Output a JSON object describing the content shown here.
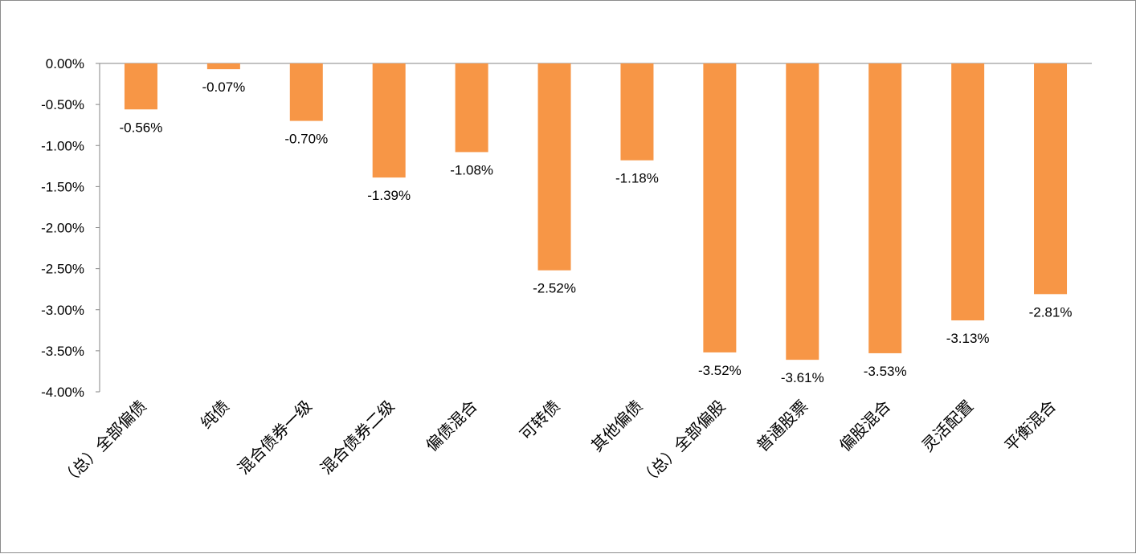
{
  "chart_data": {
    "type": "bar",
    "title": "",
    "xlabel": "",
    "ylabel": "",
    "categories": [
      "（总）全部偏债",
      "纯债",
      "混合债券一级",
      "混合债券二级",
      "偏债混合",
      "可转债",
      "其他偏债",
      "（总）全部偏股",
      "普通股票",
      "偏股混合",
      "灵活配置",
      "平衡混合"
    ],
    "values": [
      -0.56,
      -0.07,
      -0.7,
      -1.39,
      -1.08,
      -2.52,
      -1.18,
      -3.52,
      -3.61,
      -3.53,
      -3.13,
      -2.81
    ],
    "data_labels": [
      "-0.56%",
      "-0.07%",
      "-0.70%",
      "-1.39%",
      "-1.08%",
      "-2.52%",
      "-1.18%",
      "-3.52%",
      "-3.61%",
      "-3.53%",
      "-3.13%",
      "-2.81%"
    ],
    "ylim": [
      -4.0,
      0.0
    ],
    "y_ticks": [
      0.0,
      -0.5,
      -1.0,
      -1.5,
      -2.0,
      -2.5,
      -3.0,
      -3.5,
      -4.0
    ],
    "y_tick_labels": [
      "0.00%",
      "-0.50%",
      "-1.00%",
      "-1.50%",
      "-2.00%",
      "-2.50%",
      "-3.00%",
      "-3.50%",
      "-4.00%"
    ],
    "unit": "%",
    "grid": false,
    "legend": "none",
    "bar_color": "#F79646",
    "axis_color": "#868686"
  }
}
